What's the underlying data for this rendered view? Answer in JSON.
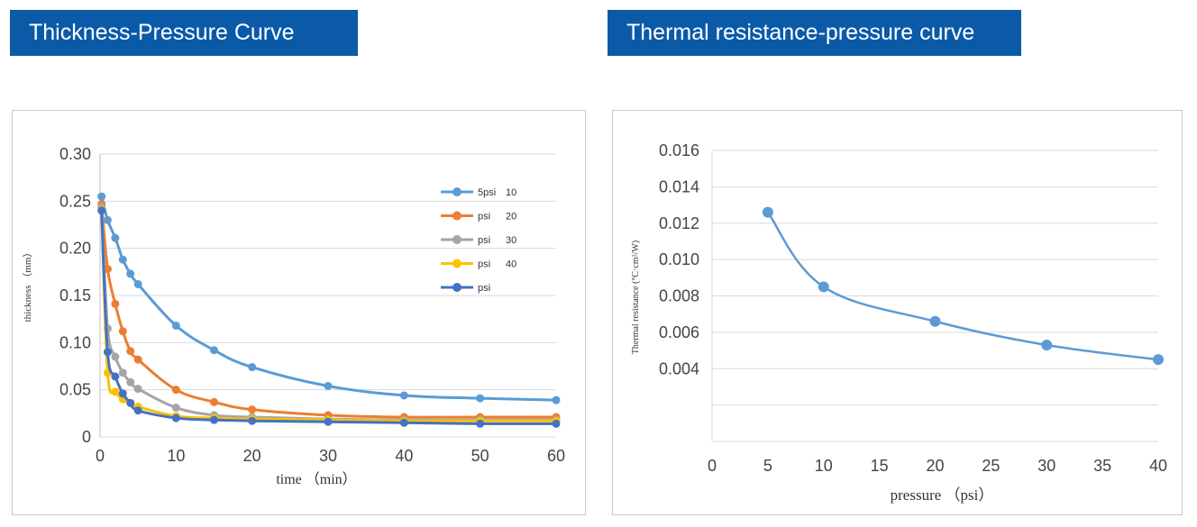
{
  "banners": {
    "left": "Thickness-Pressure Curve",
    "right": "Thermal resistance-pressure curve"
  },
  "chart_data": [
    {
      "type": "line",
      "title": "Thickness-Pressure Curve",
      "xlabel": "time （min）",
      "ylabel": "thickness （mm）",
      "xlim": [
        0,
        60
      ],
      "ylim": [
        0,
        0.3
      ],
      "x_ticks": [
        "0",
        "10",
        "20",
        "30",
        "40",
        "50",
        "60"
      ],
      "y_ticks": [
        "0",
        "0.05",
        "0.10",
        "0.15",
        "0.20",
        "0.25",
        "0.30"
      ],
      "grid": true,
      "legend_position": "top-right",
      "legend": [
        {
          "label": "5psi",
          "value": "10"
        },
        {
          "label": "psi",
          "value": "20"
        },
        {
          "label": "psi",
          "value": "30"
        },
        {
          "label": "psi",
          "value": "40"
        },
        {
          "label": "psi",
          "value": ""
        }
      ],
      "colors": [
        "#5b9bd5",
        "#ed7d31",
        "#a5a5a5",
        "#ffc000",
        "#4472c4"
      ],
      "series": [
        {
          "x": [
            0.2,
            1,
            2,
            3,
            4,
            5,
            10,
            15,
            20,
            30,
            40,
            50,
            60
          ],
          "values": [
            0.255,
            0.23,
            0.211,
            0.188,
            0.173,
            0.162,
            0.118,
            0.092,
            0.074,
            0.054,
            0.044,
            0.041,
            0.039
          ]
        },
        {
          "x": [
            0.2,
            1,
            2,
            3,
            4,
            5,
            10,
            15,
            20,
            30,
            40,
            50,
            60
          ],
          "values": [
            0.247,
            0.178,
            0.141,
            0.112,
            0.091,
            0.082,
            0.05,
            0.037,
            0.029,
            0.023,
            0.021,
            0.021,
            0.021
          ]
        },
        {
          "x": [
            0.2,
            1,
            2,
            3,
            4,
            5,
            10,
            15,
            20,
            30,
            40,
            50,
            60
          ],
          "values": [
            0.244,
            0.115,
            0.085,
            0.068,
            0.058,
            0.051,
            0.031,
            0.023,
            0.021,
            0.019,
            0.018,
            0.018,
            0.018
          ]
        },
        {
          "x": [
            0.2,
            1,
            2,
            3,
            4,
            5,
            10,
            15,
            20,
            30,
            40,
            50,
            60
          ],
          "values": [
            0.241,
            0.068,
            0.048,
            0.04,
            0.036,
            0.032,
            0.022,
            0.02,
            0.019,
            0.018,
            0.017,
            0.017,
            0.017
          ]
        },
        {
          "x": [
            0.2,
            1,
            2,
            3,
            4,
            5,
            10,
            15,
            20,
            30,
            40,
            50,
            60
          ],
          "values": [
            0.24,
            0.09,
            0.064,
            0.046,
            0.036,
            0.028,
            0.02,
            0.018,
            0.017,
            0.016,
            0.015,
            0.014,
            0.014
          ]
        }
      ]
    },
    {
      "type": "line",
      "title": "Thermal resistance-pressure curve",
      "xlabel": "pressure （psi）",
      "ylabel": "Thermal resistance (°C·cm²/W)",
      "xlim": [
        0,
        40
      ],
      "ylim": [
        0,
        0.016
      ],
      "x_ticks": [
        "0",
        "5",
        "10",
        "15",
        "20",
        "25",
        "30",
        "35",
        "40"
      ],
      "y_ticks": [
        "0.004",
        "0.006",
        "0.008",
        "0.010",
        "0.012",
        "0.014",
        "0.016"
      ],
      "grid": true,
      "color": "#5b9bd5",
      "series": [
        {
          "x": [
            5,
            10,
            20,
            30,
            40
          ],
          "values": [
            0.0126,
            0.0085,
            0.0066,
            0.0053,
            0.0045
          ]
        }
      ]
    }
  ]
}
